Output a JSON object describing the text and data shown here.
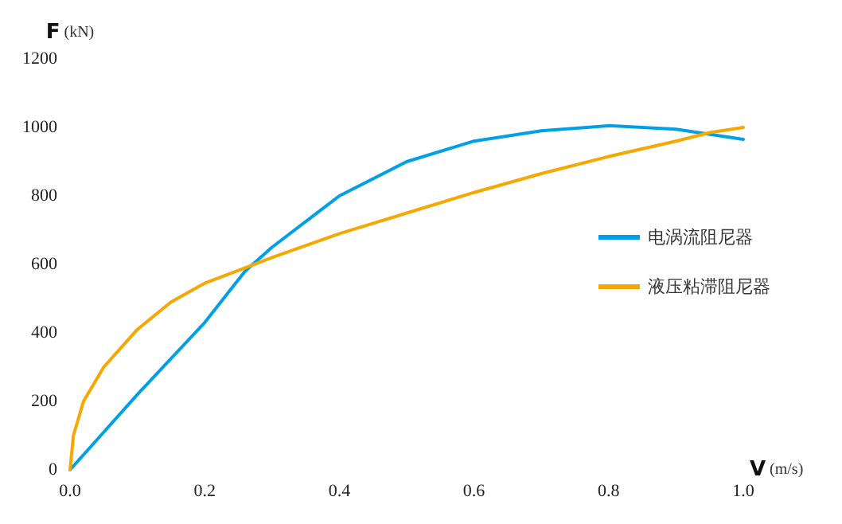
{
  "chart_data": {
    "type": "line",
    "xlabel": "V (m/s)",
    "ylabel": "F (kN)",
    "xlim": [
      0,
      1
    ],
    "xticks": [
      {
        "value": 0,
        "label": "0.0"
      },
      0.2,
      0.4,
      0.6,
      0.8,
      {
        "value": 1,
        "label": "1.0"
      }
    ],
    "ylim": [
      0,
      1200
    ],
    "yticks": [
      0,
      200,
      400,
      600,
      800,
      1000,
      1200
    ],
    "grid": false,
    "legend": "right",
    "marker": "none",
    "line_style": "solid",
    "series": [
      {
        "name": "电涡流阻尼器",
        "color": "#00a0e9",
        "x": [
          0,
          0.1,
          0.2,
          0.26,
          0.3,
          0.38,
          0.4,
          0.5,
          0.6,
          0.7,
          0.8,
          0.9,
          1.0
        ],
        "values": [
          0,
          220,
          430,
          580,
          650,
          770,
          800,
          900,
          960,
          990,
          1005,
          995,
          965
        ]
      },
      {
        "name": "液压粘滞阻尼器",
        "color": "#f5a800",
        "x": [
          0,
          0.005,
          0.02,
          0.05,
          0.1,
          0.15,
          0.2,
          0.26,
          0.3,
          0.4,
          0.5,
          0.6,
          0.7,
          0.8,
          0.9,
          0.95,
          1.0
        ],
        "values": [
          0,
          100,
          200,
          300,
          410,
          490,
          545,
          590,
          620,
          690,
          750,
          810,
          865,
          915,
          960,
          985,
          1000
        ]
      }
    ]
  }
}
